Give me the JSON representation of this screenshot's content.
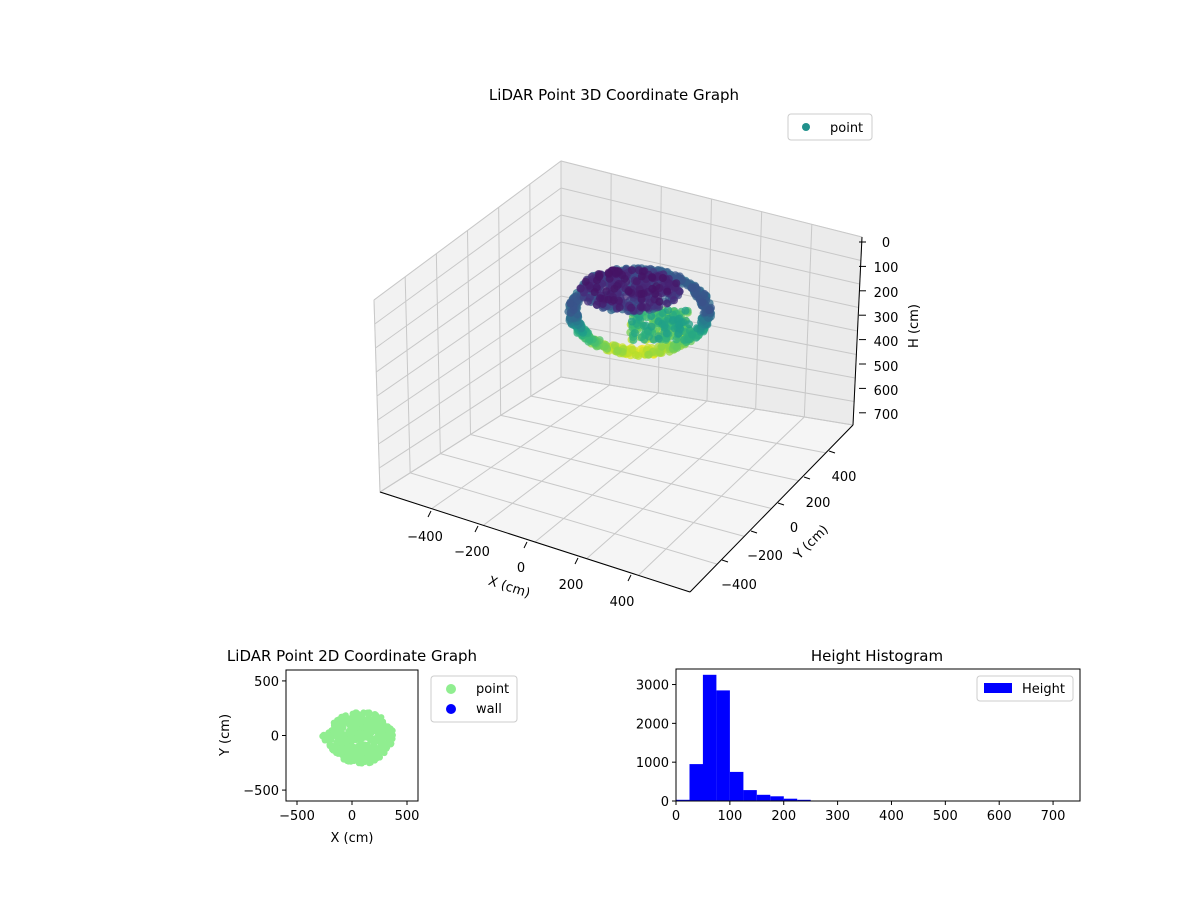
{
  "chart_data": [
    {
      "type": "scatter3d",
      "title": "LiDAR Point 3D Coordinate Graph",
      "xlabel": "X (cm)",
      "ylabel": "Y (cm)",
      "zlabel": "H (cm)",
      "xticks": [
        "−400",
        "−200",
        "0",
        "200",
        "400"
      ],
      "yticks": [
        "400",
        "200",
        "0",
        "−200",
        "−400"
      ],
      "zticks": [
        "0",
        "100",
        "200",
        "300",
        "400",
        "500",
        "600",
        "700"
      ],
      "xlim": [
        -500,
        500
      ],
      "ylim": [
        -500,
        500
      ],
      "zlim": [
        0,
        700
      ],
      "z_inverted": true,
      "colormap": "viridis",
      "legend": {
        "entries": [
          {
            "name": "point",
            "color": "#21918c"
          }
        ],
        "placement": "top-right"
      }
    },
    {
      "type": "scatter",
      "title": "LiDAR Point 2D Coordinate Graph",
      "xlabel": "X (cm)",
      "ylabel": "Y (cm)",
      "xticks": [
        "−500",
        "0",
        "500"
      ],
      "yticks": [
        "500",
        "0",
        "−500"
      ],
      "xlim": [
        -600,
        600
      ],
      "ylim": [
        -600,
        600
      ],
      "series": [
        {
          "name": "point",
          "color": "#90ee90",
          "extent": {
            "x": [
              -270,
              390
            ],
            "y": [
              -280,
              230
            ]
          }
        },
        {
          "name": "wall",
          "color": "#0000ff"
        }
      ],
      "legend": {
        "placement": "outside-right"
      }
    },
    {
      "type": "bar",
      "title": "Height Histogram",
      "xticks": [
        "0",
        "100",
        "200",
        "300",
        "400",
        "500",
        "600",
        "700"
      ],
      "yticks": [
        "0",
        "1000",
        "2000",
        "3000"
      ],
      "xlim": [
        0,
        750
      ],
      "ylim": [
        0,
        3400
      ],
      "bin_width": 25,
      "bins_start": [
        0,
        25,
        50,
        75,
        100,
        125,
        150,
        175,
        200,
        225,
        250,
        275
      ],
      "values": [
        30,
        950,
        3250,
        2850,
        750,
        280,
        160,
        120,
        60,
        30,
        10,
        5
      ],
      "color": "#0000ff",
      "legend": {
        "entries": [
          {
            "name": "Height",
            "color": "#0000ff"
          }
        ],
        "placement": "top-right"
      }
    }
  ]
}
